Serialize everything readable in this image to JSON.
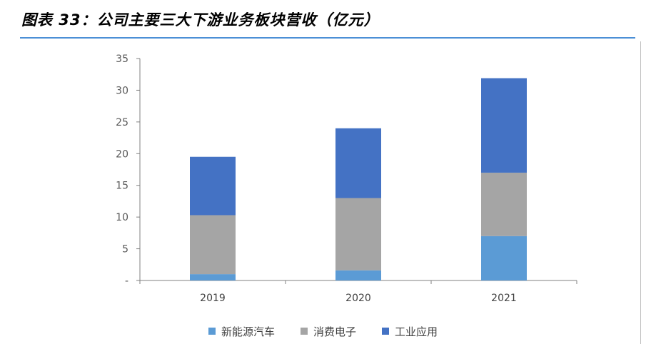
{
  "header": {
    "title": "图表 33：公司主要三大下游业务板块营收（亿元）"
  },
  "chart_data": {
    "type": "bar",
    "stacked": true,
    "categories": [
      "2019",
      "2020",
      "2021"
    ],
    "series": [
      {
        "name": "新能源汽车",
        "values": [
          1.0,
          1.6,
          7.0
        ],
        "color": "#5b9bd5"
      },
      {
        "name": "消费电子",
        "values": [
          9.3,
          11.4,
          10.0
        ],
        "color": "#a5a5a5"
      },
      {
        "name": "工业应用",
        "values": [
          9.2,
          11.0,
          14.9
        ],
        "color": "#4472c4"
      }
    ],
    "yticks": [
      "-",
      "5",
      "10",
      "15",
      "20",
      "25",
      "30",
      "35"
    ],
    "ylim": [
      0,
      35
    ],
    "grid": false,
    "legend": "bottom"
  }
}
